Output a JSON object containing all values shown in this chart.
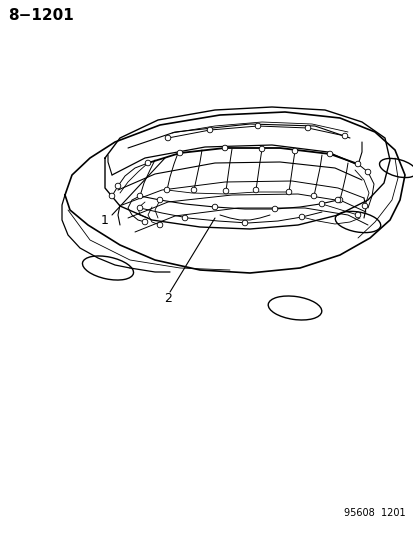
{
  "title": "8−1201",
  "footer": "95608  1201",
  "label1": "1",
  "label2": "2",
  "bg_color": "#ffffff",
  "line_color": "#000000",
  "text_color": "#000000",
  "title_fontsize": 11,
  "label_fontsize": 9,
  "footer_fontsize": 7,
  "fig_width": 4.14,
  "fig_height": 5.33,
  "dpi": 100
}
